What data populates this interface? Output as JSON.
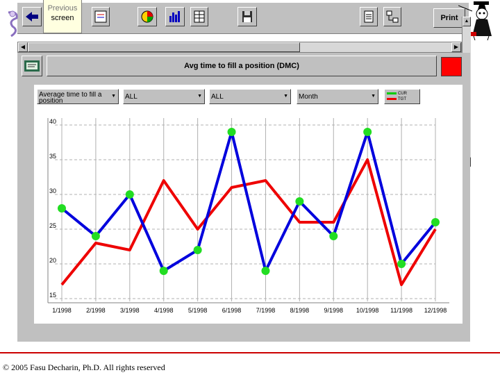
{
  "toolbar": {
    "prev_screen_line1": "Previous",
    "prev_screen_line2": "screen",
    "print_label": "Print",
    "icons": [
      "back-arrow-icon",
      "report-icon",
      "pie-chart-icon",
      "bar-chart-icon",
      "table-icon",
      "save-disk-icon",
      "document-icon",
      "network-icon"
    ]
  },
  "panel": {
    "title": "Avg time to fill a position (DMC)",
    "status_color": "#ff0000"
  },
  "filters": [
    {
      "value": "Average time to fill a position"
    },
    {
      "value": "ALL"
    },
    {
      "value": "ALL"
    },
    {
      "value": "Month"
    }
  ],
  "legend": [
    {
      "name": "CUR",
      "color": "#0000dd"
    },
    {
      "name": "TGT",
      "color": "#ee0000"
    }
  ],
  "chart_data": {
    "type": "line",
    "categories": [
      "1/1998",
      "2/1998",
      "3/1998",
      "4/1998",
      "5/1998",
      "6/1998",
      "7/1998",
      "8/1998",
      "9/1998",
      "10/1998",
      "11/1998",
      "12/1998"
    ],
    "series": [
      {
        "name": "CUR",
        "color": "#0000dd",
        "values": [
          28,
          24,
          30,
          19,
          22,
          39,
          19,
          29,
          24,
          39,
          20,
          26
        ],
        "markers": true
      },
      {
        "name": "TGT",
        "color": "#ee0000",
        "values": [
          17,
          23,
          22,
          32,
          25,
          31,
          32,
          26,
          26,
          35,
          17,
          25
        ],
        "markers": false
      }
    ],
    "y_ticks": [
      15,
      20,
      25,
      30,
      35,
      40
    ],
    "ylim": [
      15,
      40
    ],
    "grid": true
  },
  "footer": {
    "copyright": "© 2005 Fasu Decharin, Ph.D. All rights reserved"
  }
}
